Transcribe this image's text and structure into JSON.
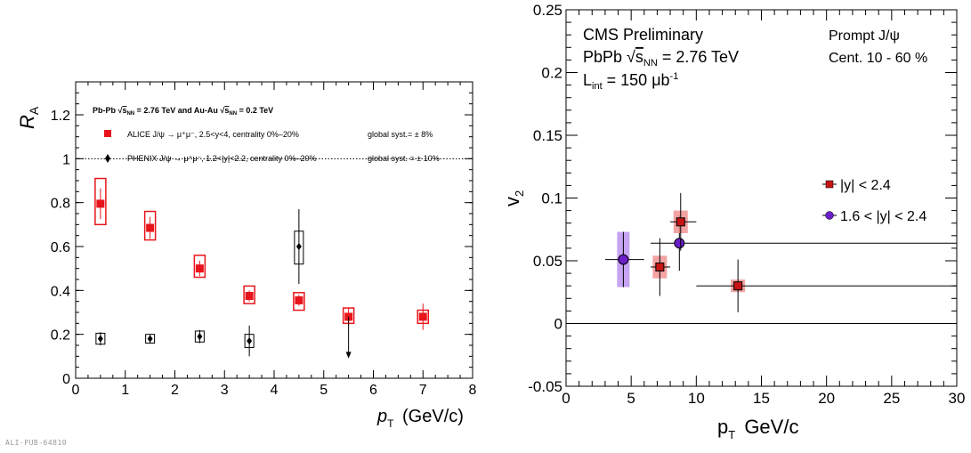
{
  "footer_tag": "ALI-PUB-64810",
  "chart_data": [
    {
      "type": "scatter",
      "ylabel": "R",
      "ylabel_sub": "A",
      "xlabel_italic": "p",
      "xlabel_sub": "T",
      "xlabel_units": "(GeV/c)",
      "xlim": [
        0,
        8
      ],
      "ylim": [
        0,
        1.35
      ],
      "x_ticks": [
        0,
        1,
        2,
        3,
        4,
        5,
        6,
        7,
        8
      ],
      "y_ticks": [
        0,
        0.2,
        0.4,
        0.6,
        0.8,
        1,
        1.2
      ],
      "y_tick_labels": [
        "0",
        "0.2",
        "0.4",
        "0.6",
        "0.8",
        "1",
        "1.2"
      ],
      "reference_line": 1,
      "header_parts": [
        "Pb-Pb ",
        "√",
        "s",
        "NN",
        " = 2.76 TeV and Au-Au ",
        "√",
        "s",
        "NN",
        " = 0.2 TeV"
      ],
      "color_alice": "#e8141b",
      "color_phenix": "#000000",
      "series": [
        {
          "name": "ALICE J/ψ → μ⁺μ⁻, 2.5<y<4, centrality 0%–20%",
          "global_syst": "global syst.= ± 8%",
          "marker": "square",
          "x": [
            0.5,
            1.5,
            2.5,
            3.5,
            4.5,
            5.5,
            7.0
          ],
          "y": [
            0.795,
            0.685,
            0.5,
            0.375,
            0.355,
            0.28,
            0.28
          ],
          "yerr": [
            0.07,
            0.05,
            0.035,
            0.025,
            0.025,
            0.04,
            0.06
          ],
          "syst_low": [
            0.7,
            0.63,
            0.46,
            0.34,
            0.31,
            0.25,
            0.25
          ],
          "syst_high": [
            0.91,
            0.76,
            0.56,
            0.42,
            0.39,
            0.32,
            0.31
          ],
          "upper_limit_index": 5
        },
        {
          "name": "PHENIX J/ψ → μ⁺μ⁻, 1.2<|y|<2.2, centrality 0%–20%",
          "global_syst": "global syst. = ± 10%",
          "marker": "diamond",
          "x": [
            0.5,
            1.5,
            2.5,
            3.5,
            4.5
          ],
          "y": [
            0.18,
            0.18,
            0.19,
            0.17,
            0.6
          ],
          "yerr": [
            0.03,
            0.02,
            0.03,
            0.07,
            0.17
          ],
          "syst_low": [
            0.155,
            0.16,
            0.165,
            0.14,
            0.52
          ],
          "syst_high": [
            0.205,
            0.2,
            0.215,
            0.2,
            0.67
          ]
        }
      ]
    },
    {
      "type": "scatter",
      "ylabel": "v",
      "ylabel_sub": "2",
      "xlabel": "p",
      "xlabel_sub": "T",
      "xlabel_units": "GeV/c",
      "xlim": [
        0,
        30
      ],
      "ylim": [
        -0.05,
        0.25
      ],
      "x_ticks": [
        0,
        5,
        10,
        15,
        20,
        25,
        30
      ],
      "y_ticks": [
        -0.05,
        0,
        0.05,
        0.1,
        0.15,
        0.2,
        0.25
      ],
      "y_tick_labels": [
        "-0.05",
        "0",
        "0.05",
        "0.1",
        "0.15",
        "0.2",
        "0.25"
      ],
      "zero_line": 0,
      "text_left": [
        "CMS Preliminary",
        "PbPb  √s",
        "NN",
        " = 2.76 TeV",
        "L",
        "int",
        " = 150 μb",
        "-1"
      ],
      "text_right": [
        "Prompt J/ψ",
        "Cent. 10 - 60 %"
      ],
      "color_cms_red": "#c81414",
      "color_cms_red_box": "#f08c8c",
      "color_cms_purple": "#6a1fc8",
      "color_cms_purple_box": "#b88cf0",
      "series": [
        {
          "name": "|y| < 2.4",
          "marker": "square",
          "x": [
            7.2,
            8.8,
            13.2
          ],
          "y": [
            0.045,
            0.081,
            0.03
          ],
          "xerr_low": [
            0.7,
            0.8,
            3.2
          ],
          "xerr_high": [
            0.8,
            1.2,
            16.8
          ],
          "yerr": [
            0.023,
            0.023,
            0.021
          ],
          "syst": [
            0.009,
            0.009,
            0.005
          ]
        },
        {
          "name": "1.6 < |y| < 2.4",
          "marker": "circle",
          "x": [
            4.4,
            8.7
          ],
          "y": [
            0.051,
            0.064
          ],
          "xerr_low": [
            1.4,
            2.2
          ],
          "xerr_high": [
            1.6,
            21.3
          ],
          "yerr": [
            0.022,
            0.022
          ],
          "syst": [
            0.022,
            0.0
          ]
        }
      ]
    }
  ]
}
